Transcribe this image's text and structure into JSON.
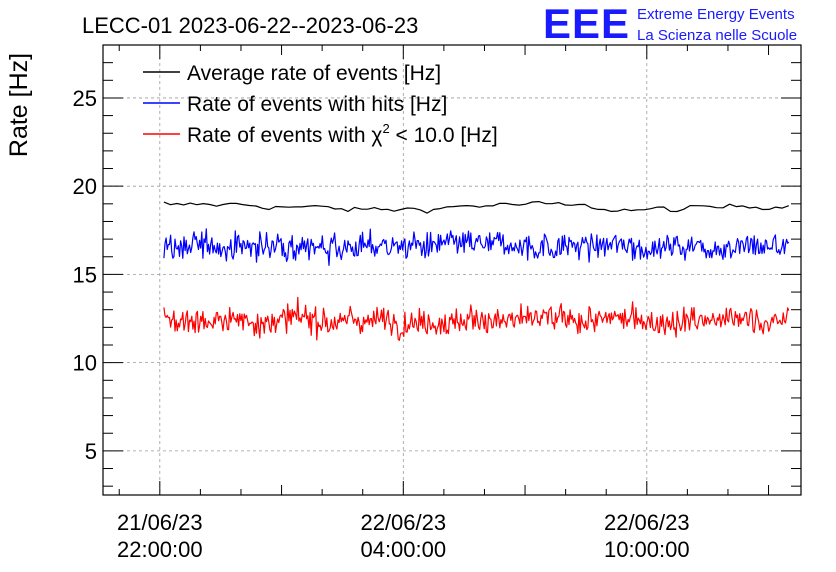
{
  "chart_data": {
    "type": "line",
    "title": "LECC-01 2023-06-22--2023-06-23",
    "ylabel": "Rate [Hz]",
    "xlabel": "",
    "ylim": [
      2.5,
      28
    ],
    "yticks": [
      5,
      10,
      15,
      20,
      25
    ],
    "ytick_labels": [
      "5",
      "10",
      "15",
      "20",
      "25"
    ],
    "xlim_hours": [
      -1.4,
      15.8
    ],
    "xticks": [
      {
        "hour": 0,
        "date": "21/06/23",
        "time": "22:00:00"
      },
      {
        "hour": 6,
        "date": "22/06/23",
        "time": "04:00:00"
      },
      {
        "hour": 12,
        "date": "22/06/23",
        "time": "10:00:00"
      }
    ],
    "x_range_hours": [
      0.1,
      15.5
    ],
    "grid": true,
    "legend_position": "top-left",
    "series": [
      {
        "name": "Average rate of events [Hz]",
        "color": "#000000",
        "mean": 18.8,
        "noise": 0.3,
        "style": "smooth"
      },
      {
        "name": "Rate of events with hits [Hz]",
        "color": "#0000ff",
        "mean": 16.6,
        "noise": 1.1,
        "style": "noisy"
      },
      {
        "name": "Rate of events with χ² < 10.0 [Hz]",
        "color": "#ff0000",
        "mean": 12.4,
        "noise": 1.1,
        "style": "noisy"
      }
    ]
  },
  "logo": {
    "mark": "EEE",
    "line1": "Extreme Energy Events",
    "line2": "La Scienza nelle Scuole",
    "color": "#1a1aff"
  },
  "legend": {
    "avg": "Average rate of events [Hz]",
    "hits": "Rate of events with hits [Hz]",
    "chi_prefix": "Rate of events with χ",
    "chi_sup": "2",
    "chi_suffix": " < 10.0 [Hz]"
  }
}
